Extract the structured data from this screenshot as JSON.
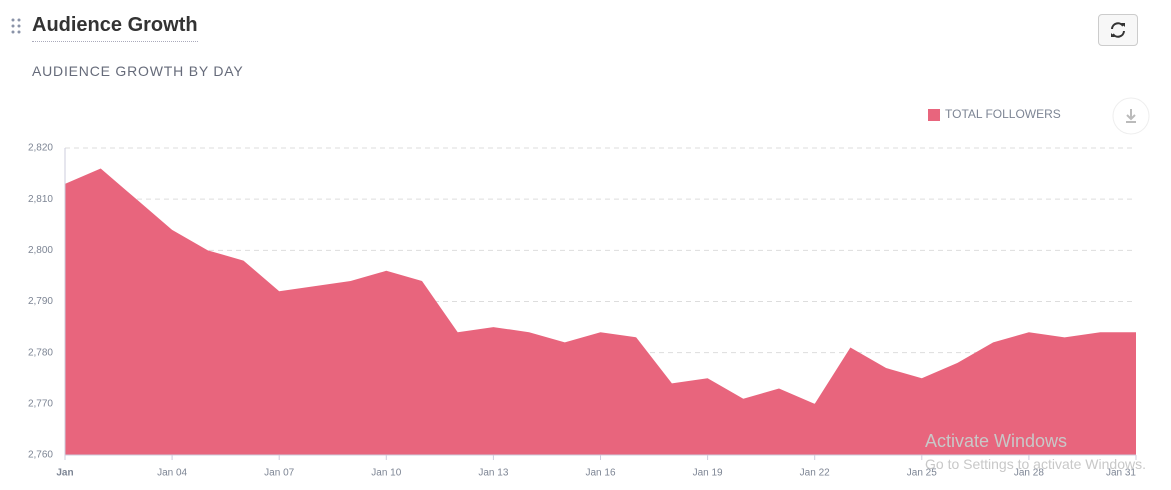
{
  "header": {
    "title": "Audience Growth",
    "subtitle": "AUDIENCE GROWTH BY DAY"
  },
  "chart_data": {
    "type": "area",
    "categories": [
      "Jan",
      null,
      null,
      "Jan 04",
      null,
      null,
      "Jan 07",
      null,
      null,
      "Jan 10",
      null,
      null,
      "Jan 13",
      null,
      null,
      "Jan 16",
      null,
      null,
      "Jan 19",
      null,
      null,
      "Jan 22",
      null,
      null,
      "Jan 25",
      null,
      null,
      "Jan 28",
      null,
      null,
      "Jan 31"
    ],
    "series": [
      {
        "name": "TOTAL FOLLOWERS",
        "color": "#e8657d",
        "values": [
          2813,
          2816,
          2810,
          2804,
          2800,
          2798,
          2792,
          2793,
          2794,
          2796,
          2794,
          2784,
          2785,
          2784,
          2782,
          2784,
          2783,
          2774,
          2775,
          2771,
          2773,
          2770,
          2781,
          2777,
          2775,
          2778,
          2782,
          2784,
          2783,
          2784,
          2784
        ]
      }
    ],
    "ylim": [
      2760,
      2820
    ],
    "yticks": [
      {
        "value": 2760,
        "label": "2,760"
      },
      {
        "value": 2770,
        "label": "2,770"
      },
      {
        "value": 2780,
        "label": "2,780"
      },
      {
        "value": 2790,
        "label": "2,790"
      },
      {
        "value": 2800,
        "label": "2,800"
      },
      {
        "value": 2810,
        "label": "2,810"
      },
      {
        "value": 2820,
        "label": "2,820"
      }
    ],
    "grid": true,
    "legend": "top-right"
  },
  "watermark": {
    "line1": "Activate Windows",
    "line2": "Go to Settings to activate Windows."
  }
}
